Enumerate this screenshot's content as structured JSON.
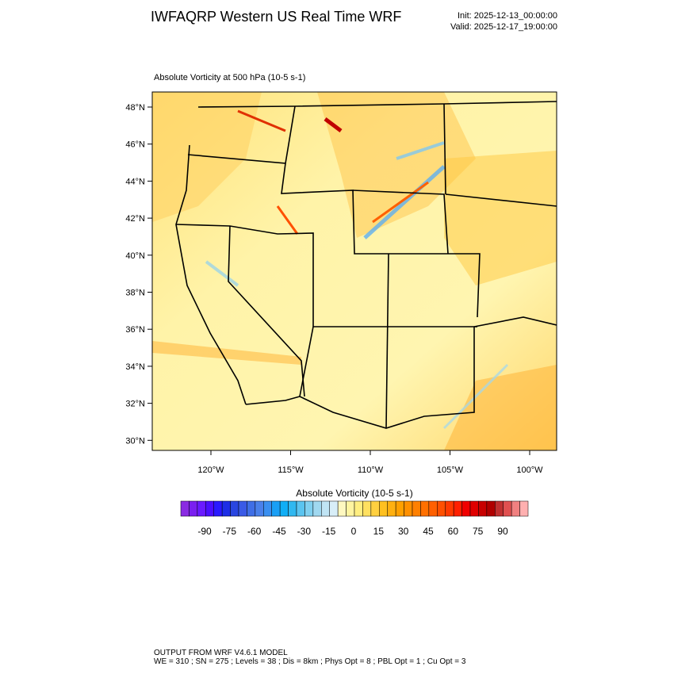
{
  "header": {
    "title": "IWFAQRP Western US Real Time WRF",
    "init": "Init: 2025-12-13_00:00:00",
    "valid": "Valid: 2025-12-17_19:00:00"
  },
  "map": {
    "subtitle": "Absolute Vorticity at 500 hPa   (10-5 s-1)",
    "lat_labels": [
      "48°N",
      "46°N",
      "44°N",
      "42°N",
      "40°N",
      "38°N",
      "36°N",
      "34°N",
      "32°N",
      "30°N"
    ],
    "lon_labels": [
      "120°W",
      "115°W",
      "110°W",
      "105°W",
      "100°W"
    ]
  },
  "colorbar": {
    "title": "Absolute Vorticity  (10-5 s-1)",
    "ticks": [
      -90,
      -75,
      -60,
      -45,
      -30,
      -15,
      0,
      15,
      30,
      45,
      60,
      75,
      90
    ],
    "colors": [
      "#8a2be2",
      "#7a1ff0",
      "#6a1aff",
      "#4b0fff",
      "#2a1aff",
      "#1e2ee6",
      "#2a46e0",
      "#3a5ae6",
      "#3f6ee6",
      "#4a80ea",
      "#3a8ff0",
      "#1a9ff5",
      "#10aef5",
      "#30b8f0",
      "#5ac4f0",
      "#80d0f0",
      "#a0d8f0",
      "#c0e4f4",
      "#d8eef8",
      "#fff8c0",
      "#fff4a0",
      "#ffee80",
      "#ffe060",
      "#ffd040",
      "#ffc020",
      "#ffb010",
      "#ffa000",
      "#ff9000",
      "#ff8000",
      "#ff7000",
      "#ff6000",
      "#ff5000",
      "#ff3a00",
      "#ff2000",
      "#f00000",
      "#e00000",
      "#c80000",
      "#b00000",
      "#c03030",
      "#e05050",
      "#f08080",
      "#ffb0b0"
    ]
  },
  "footer": {
    "line1": "OUTPUT FROM WRF V4.6.1 MODEL",
    "line2": "WE = 310 ; SN = 275 ; Levels = 38 ; Dis = 8km ; Phys Opt = 8 ; PBL Opt = 1 ; Cu Opt = 3"
  }
}
